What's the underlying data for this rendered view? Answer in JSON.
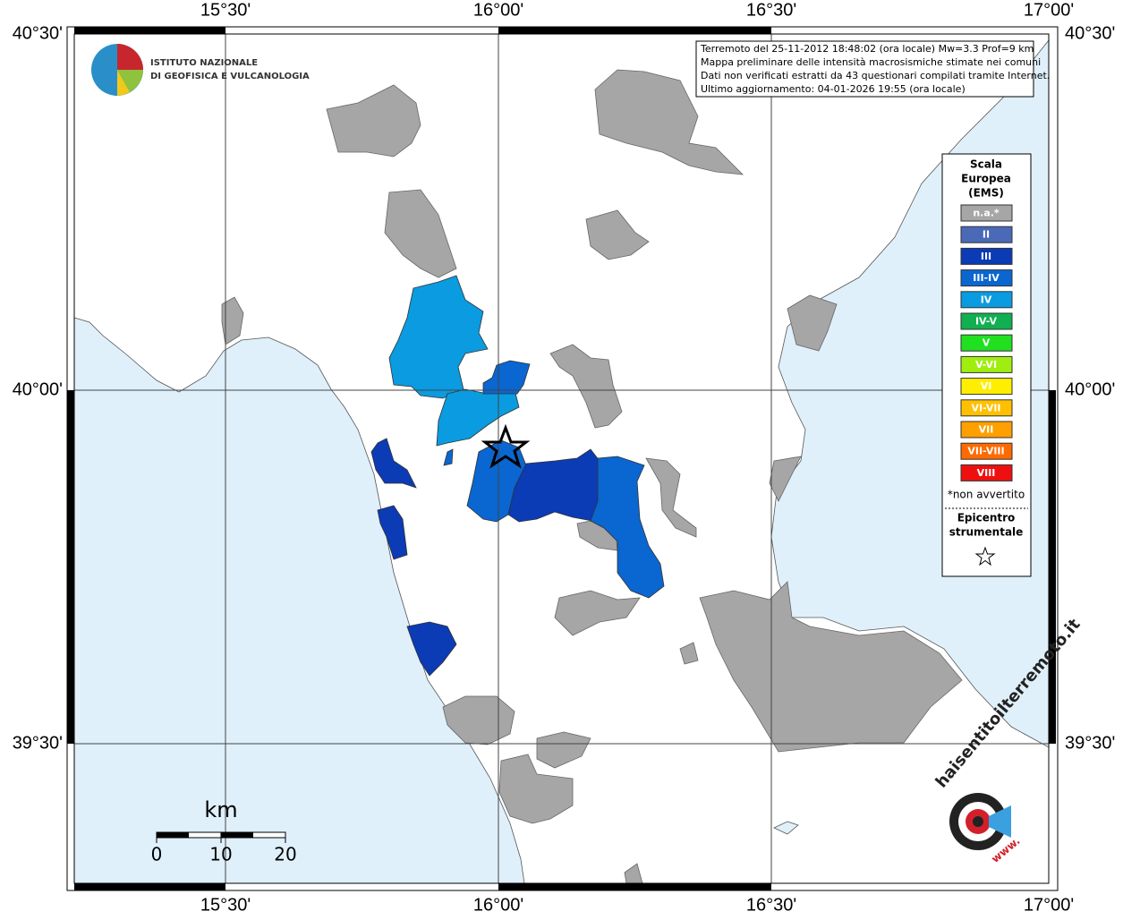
{
  "map": {
    "top_labels": [
      "15°30'",
      "16°00'",
      "16°30'",
      "17°00'"
    ],
    "bottom_labels": [
      "15°30'",
      "16°00'",
      "16°30'",
      "17°00'"
    ],
    "left_labels": [
      "40°30'",
      "40°00'",
      "39°30'"
    ],
    "right_labels": [
      "40°30'",
      "40°00'",
      "39°30'"
    ],
    "logo": [
      "ISTITUTO NAZIONALE",
      "DI GEOFISICA E VULCANOLOGIA"
    ],
    "info": [
      "Terremoto del 25-11-2012 18:48:02 (ora locale) Mw=3.3 Prof=9 km",
      "Mappa preliminare delle intensità macrosismiche stimate nei comuni",
      "Dati non verificati estratti da 43 questionari compilati tramite Internet.",
      "Ultimo aggiornamento: 04-01-2026 19:55 (ora locale)"
    ],
    "legend": {
      "title": [
        "Scala",
        "Europea",
        "(EMS)"
      ],
      "items": [
        {
          "label": "n.a.*",
          "color": "#a6a6a6"
        },
        {
          "label": "II",
          "color": "#4a6ab8"
        },
        {
          "label": "III",
          "color": "#0b3bb5"
        },
        {
          "label": "III-IV",
          "color": "#0a66d0"
        },
        {
          "label": "IV",
          "color": "#0a9be0"
        },
        {
          "label": "IV-V",
          "color": "#10b050"
        },
        {
          "label": "V",
          "color": "#20e020"
        },
        {
          "label": "V-VI",
          "color": "#a0ee10"
        },
        {
          "label": "VI",
          "color": "#ffee00"
        },
        {
          "label": "VI-VII",
          "color": "#ffc000"
        },
        {
          "label": "VII",
          "color": "#ffa000"
        },
        {
          "label": "VII-VIII",
          "color": "#ff6a00"
        },
        {
          "label": "VIII",
          "color": "#ee1010"
        }
      ],
      "note": "*non avvertito",
      "epicenter": [
        "Epicentro",
        "strumentale"
      ]
    },
    "scale": {
      "unit": "km",
      "ticks": [
        0,
        10,
        20
      ]
    },
    "site": {
      "name": "haisentitoilterremoto.it",
      "prefix": "www."
    }
  }
}
